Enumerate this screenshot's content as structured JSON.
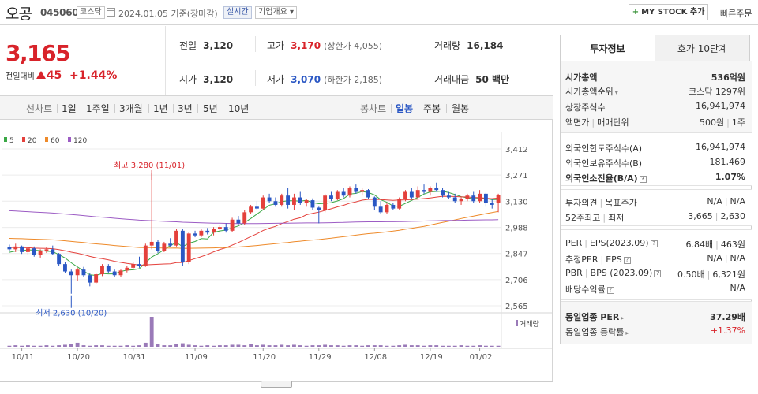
{
  "header": {
    "name": "오공",
    "code": "045060",
    "market": "코스닥",
    "date": "2024.01.05 기준(장마감)",
    "realtime": "실시간",
    "company_info": "기업개요 ▾",
    "mystock": "MY STOCK 추가",
    "mystock_plus": "+",
    "quick_order": "빠른주문"
  },
  "price": {
    "current": "3,165",
    "diff_label": "전일대비",
    "diff": "45",
    "rate": "+1.44%"
  },
  "quote": {
    "prev_close_label": "전일",
    "prev_close": "3,120",
    "high_label": "고가",
    "high": "3,170",
    "upper_limit": "(상한가 4,055)",
    "volume_label": "거래량",
    "volume": "16,184",
    "open_label": "시가",
    "open": "3,120",
    "low_label": "저가",
    "low": "3,070",
    "lower_limit": "(하한가 2,185)",
    "amount_label": "거래대금",
    "amount": "50 백만"
  },
  "chart_tabs": {
    "line_label": "선차트",
    "line_tabs": [
      "1일",
      "1주일",
      "3개월",
      "1년",
      "3년",
      "5년",
      "10년"
    ],
    "candle_label": "봉차트",
    "candle_tabs": [
      "일봉",
      "주봉",
      "월봉"
    ],
    "active_candle": "일봉"
  },
  "chart_data": {
    "type": "candlestick",
    "ma_legend": [
      {
        "name": "5",
        "color": "#3aa845"
      },
      {
        "name": "20",
        "color": "#e4403b"
      },
      {
        "name": "60",
        "color": "#ee8a2a"
      },
      {
        "name": "120",
        "color": "#9c5cc4"
      }
    ],
    "y_ticks": [
      "3,412",
      "3,271",
      "3,130",
      "2,988",
      "2,847",
      "2,706",
      "2,565"
    ],
    "y_tick_values": [
      3412,
      3271,
      3130,
      2988,
      2847,
      2706,
      2565
    ],
    "x_ticks": [
      "10/11",
      "10/20",
      "10/31",
      "11/09",
      "11/20",
      "11/29",
      "12/08",
      "12/19",
      "01/02"
    ],
    "high_annotation": "최고 3,280 (11/01)",
    "low_annotation": "최저 2,630 (10/20)",
    "volume_label": "거래량",
    "up_color": "#e4403b",
    "down_color": "#2a57c4",
    "candles": [
      [
        2880,
        2895,
        2860,
        2870
      ],
      [
        2870,
        2900,
        2855,
        2885
      ],
      [
        2885,
        2890,
        2845,
        2855
      ],
      [
        2855,
        2880,
        2840,
        2875
      ],
      [
        2875,
        2885,
        2830,
        2840
      ],
      [
        2840,
        2870,
        2825,
        2860
      ],
      [
        2860,
        2880,
        2850,
        2870
      ],
      [
        2870,
        2890,
        2840,
        2845
      ],
      [
        2845,
        2850,
        2780,
        2790
      ],
      [
        2790,
        2800,
        2740,
        2750
      ],
      [
        2750,
        2760,
        2630,
        2730
      ],
      [
        2730,
        2770,
        2700,
        2760
      ],
      [
        2760,
        2775,
        2720,
        2730
      ],
      [
        2730,
        2740,
        2670,
        2690
      ],
      [
        2690,
        2740,
        2680,
        2735
      ],
      [
        2735,
        2790,
        2725,
        2780
      ],
      [
        2780,
        2790,
        2740,
        2750
      ],
      [
        2750,
        2760,
        2720,
        2730
      ],
      [
        2730,
        2760,
        2720,
        2755
      ],
      [
        2755,
        2780,
        2745,
        2770
      ],
      [
        2770,
        2800,
        2760,
        2790
      ],
      [
        2790,
        2830,
        2770,
        2780
      ],
      [
        2780,
        2900,
        2775,
        2890
      ],
      [
        2890,
        3280,
        2870,
        2910
      ],
      [
        2910,
        2920,
        2850,
        2860
      ],
      [
        2860,
        2910,
        2855,
        2900
      ],
      [
        2900,
        2930,
        2880,
        2890
      ],
      [
        2890,
        2980,
        2885,
        2970
      ],
      [
        2970,
        2980,
        2780,
        2800
      ],
      [
        2800,
        2965,
        2790,
        2955
      ],
      [
        2955,
        2970,
        2935,
        2945
      ],
      [
        2945,
        2980,
        2935,
        2970
      ],
      [
        2970,
        2985,
        2950,
        2960
      ],
      [
        2960,
        2990,
        2945,
        2980
      ],
      [
        2980,
        3000,
        2960,
        2990
      ],
      [
        2990,
        3010,
        2960,
        2970
      ],
      [
        2970,
        3040,
        2965,
        3030
      ],
      [
        3030,
        3050,
        3000,
        3010
      ],
      [
        3010,
        3080,
        3000,
        3070
      ],
      [
        3070,
        3110,
        3060,
        3100
      ],
      [
        3100,
        3130,
        3080,
        3090
      ],
      [
        3090,
        3160,
        3085,
        3150
      ],
      [
        3150,
        3170,
        3120,
        3130
      ],
      [
        3130,
        3150,
        3100,
        3110
      ],
      [
        3110,
        3170,
        3100,
        3160
      ],
      [
        3160,
        3200,
        3090,
        3110
      ],
      [
        3110,
        3170,
        3080,
        3150
      ],
      [
        3150,
        3180,
        3110,
        3120
      ],
      [
        3120,
        3140,
        3100,
        3135
      ],
      [
        3135,
        3145,
        3080,
        3095
      ],
      [
        3095,
        3100,
        3010,
        3080
      ],
      [
        3080,
        3170,
        3070,
        3160
      ],
      [
        3160,
        3180,
        3130,
        3140
      ],
      [
        3140,
        3190,
        3135,
        3180
      ],
      [
        3180,
        3200,
        3150,
        3160
      ],
      [
        3160,
        3210,
        3150,
        3200
      ],
      [
        3200,
        3220,
        3170,
        3180
      ],
      [
        3180,
        3200,
        3160,
        3190
      ],
      [
        3190,
        3195,
        3140,
        3150
      ],
      [
        3150,
        3155,
        3080,
        3100
      ],
      [
        3100,
        3130,
        3060,
        3070
      ],
      [
        3070,
        3120,
        3060,
        3110
      ],
      [
        3110,
        3120,
        3080,
        3090
      ],
      [
        3090,
        3150,
        3085,
        3140
      ],
      [
        3140,
        3190,
        3130,
        3180
      ],
      [
        3180,
        3200,
        3140,
        3150
      ],
      [
        3150,
        3210,
        3140,
        3190
      ],
      [
        3190,
        3220,
        3170,
        3180
      ],
      [
        3180,
        3210,
        3160,
        3200
      ],
      [
        3200,
        3230,
        3180,
        3190
      ],
      [
        3190,
        3200,
        3150,
        3160
      ],
      [
        3160,
        3180,
        3140,
        3150
      ],
      [
        3150,
        3170,
        3120,
        3130
      ],
      [
        3130,
        3150,
        3110,
        3140
      ],
      [
        3140,
        3170,
        3130,
        3160
      ],
      [
        3160,
        3180,
        3120,
        3130
      ],
      [
        3130,
        3190,
        3120,
        3170
      ],
      [
        3170,
        3175,
        3100,
        3120
      ],
      [
        3120,
        3140,
        3090,
        3110
      ],
      [
        3120,
        3170,
        3070,
        3165
      ]
    ],
    "volumes": [
      2,
      3,
      2,
      3,
      2,
      2,
      3,
      2,
      3,
      4,
      6,
      8,
      3,
      2,
      3,
      3,
      2,
      2,
      2,
      3,
      2,
      3,
      8,
      60,
      6,
      3,
      3,
      5,
      7,
      4,
      3,
      2,
      3,
      2,
      3,
      3,
      4,
      4,
      3,
      6,
      3,
      4,
      3,
      3,
      4,
      3,
      4,
      3,
      2,
      3,
      3,
      4,
      3,
      3,
      2,
      3,
      3,
      2,
      3,
      3,
      3,
      2,
      2,
      3,
      4,
      3,
      3,
      2,
      3,
      3,
      2,
      2,
      2,
      3,
      2,
      2,
      3,
      2,
      2,
      2
    ]
  },
  "right_panel": {
    "tab_info": "투자정보",
    "tab_quote": "호가 10단계",
    "market_cap_label": "시가총액",
    "market_cap": "536억원",
    "cap_rank_label": "시가총액순위",
    "cap_rank": "코스닥 1297위",
    "shares_label": "상장주식수",
    "shares": "16,941,974",
    "par_label": "액면가",
    "trade_unit_label": "매매단위",
    "par": "500원",
    "trade_unit": "1주",
    "foreign_limit_label": "외국인한도주식수(A)",
    "foreign_limit": "16,941,974",
    "foreign_hold_label": "외국인보유주식수(B)",
    "foreign_hold": "181,469",
    "foreign_rate_label": "외국인소진율(B/A)",
    "foreign_rate": "1.07%",
    "opinion_label": "투자의견",
    "target_label": "목표주가",
    "opinion": "N/A",
    "target": "N/A",
    "w52_label": "52주최고",
    "w52_low_label": "최저",
    "w52_high": "3,665",
    "w52_low": "2,630",
    "per_label": "PER",
    "eps_label": "EPS(2023.09)",
    "per": "6.84배",
    "eps": "463원",
    "est_per_label": "추정PER",
    "est_eps_label": "EPS",
    "est_per": "N/A",
    "est_eps": "N/A",
    "pbr_label": "PBR",
    "bps_label": "BPS (2023.09)",
    "pbr": "0.50배",
    "bps": "6,321원",
    "dividend_label": "배당수익률",
    "dividend": "N/A",
    "industry_per_label": "동일업종 PER",
    "industry_per": "37.29배",
    "industry_rate_label": "동일업종 등락률",
    "industry_rate": "+1.37%"
  }
}
